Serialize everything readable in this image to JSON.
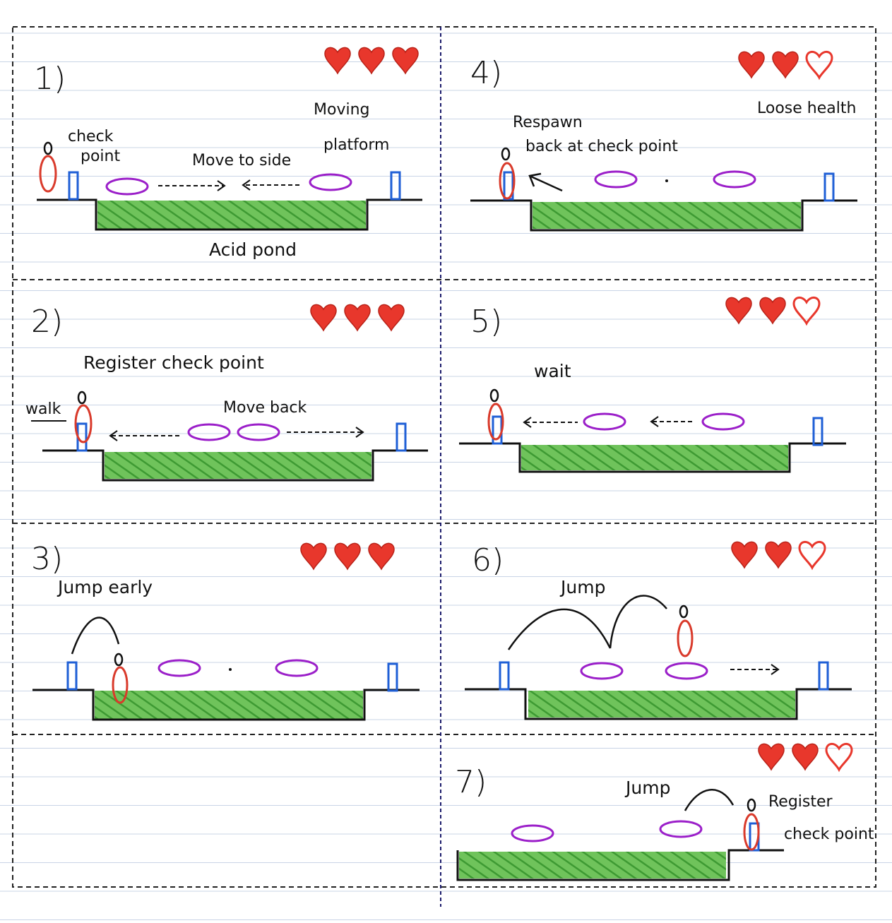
{
  "colors": {
    "heart": "#e8372c",
    "acid": "#5cb84a",
    "platform": "#9b1fc9",
    "checkpoint": "#1f5fd6",
    "player": "#d93a2b",
    "ruling": "#c9d4e6",
    "divider": "#1b1b6b"
  },
  "panels": [
    {
      "number": "1)",
      "hearts": [
        "full",
        "full",
        "full"
      ],
      "labels": {
        "checkpoint": "check point",
        "moving_platform": "Moving platform",
        "move_to_side": "Move to side",
        "acid_pond": "Acid pond"
      }
    },
    {
      "number": "2)",
      "hearts": [
        "full",
        "full",
        "full"
      ],
      "labels": {
        "register": "Register check point",
        "walk": "walk",
        "move_back": "Move back"
      }
    },
    {
      "number": "3)",
      "hearts": [
        "full",
        "full",
        "full"
      ],
      "labels": {
        "jump_early": "Jump early"
      }
    },
    {
      "number": "4)",
      "hearts": [
        "full",
        "full",
        "empty"
      ],
      "labels": {
        "respawn": "Respawn back at check point",
        "loose_health": "Loose health"
      }
    },
    {
      "number": "5)",
      "hearts": [
        "full",
        "full",
        "empty"
      ],
      "labels": {
        "wait": "wait"
      }
    },
    {
      "number": "6)",
      "hearts": [
        "full",
        "full",
        "empty"
      ],
      "labels": {
        "jump": "Jump"
      }
    },
    {
      "number": "7)",
      "hearts": [
        "full",
        "full",
        "empty"
      ],
      "labels": {
        "jump": "Jump",
        "register": "Register check point"
      }
    }
  ]
}
